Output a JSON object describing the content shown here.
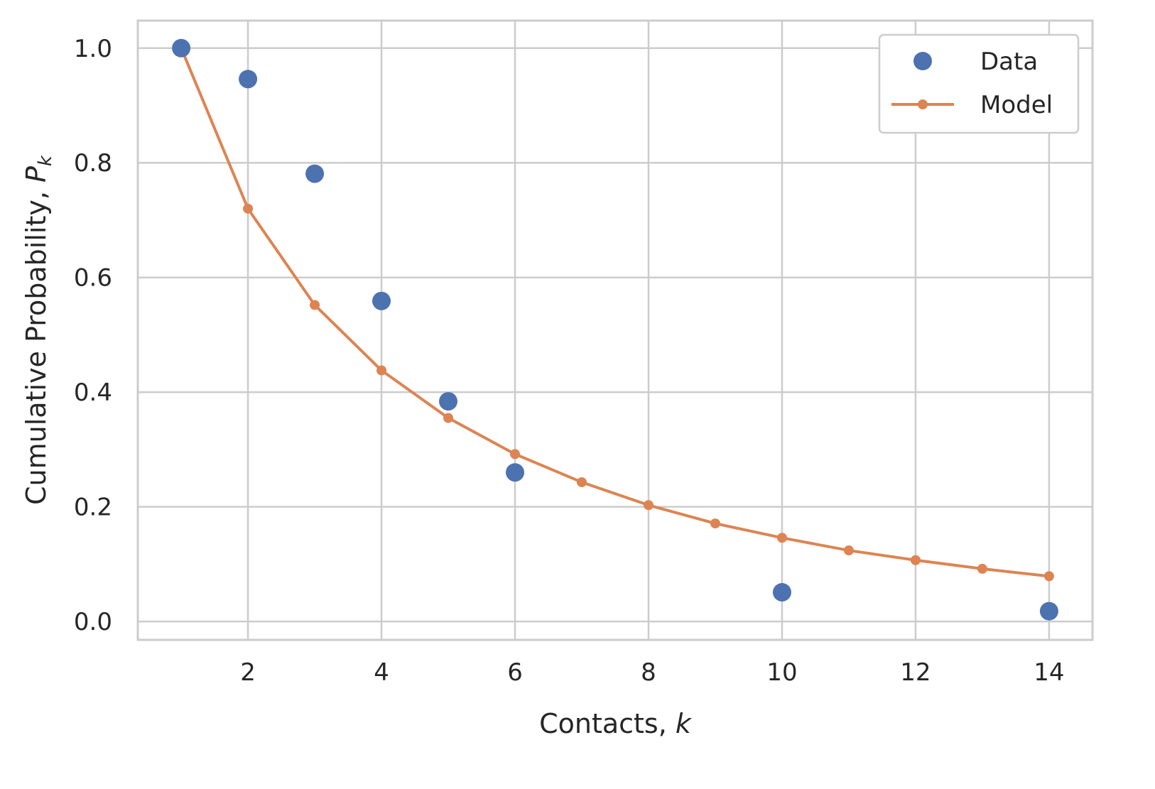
{
  "colors": {
    "data": "#4c72b0",
    "model": "#dd8452",
    "grid": "#cccccc",
    "text": "#262626"
  },
  "chart_data": {
    "type": "scatter",
    "xlabel": "Contacts, ",
    "xlabel_var": "k",
    "ylabel": "Cumulative Probability, ",
    "ylabel_var": "P",
    "ylabel_sub": "k",
    "xlim": [
      0.35,
      14.65
    ],
    "ylim": [
      -0.032,
      1.048
    ],
    "x_ticks": [
      2,
      4,
      6,
      8,
      10,
      12,
      14
    ],
    "x_tick_labels": [
      "2",
      "4",
      "6",
      "8",
      "10",
      "12",
      "14"
    ],
    "y_ticks": [
      0.0,
      0.2,
      0.4,
      0.6,
      0.8,
      1.0
    ],
    "y_tick_labels": [
      "0.0",
      "0.2",
      "0.4",
      "0.6",
      "0.8",
      "1.0"
    ],
    "grid": true,
    "legend_position": "top-right",
    "series": [
      {
        "name": "Data",
        "style": "markers",
        "color": "#4c72b0",
        "x": [
          1,
          2,
          3,
          4,
          5,
          6,
          10,
          14
        ],
        "y": [
          1.0,
          0.946,
          0.781,
          0.559,
          0.384,
          0.26,
          0.051,
          0.018
        ]
      },
      {
        "name": "Model",
        "style": "line-markers",
        "color": "#dd8452",
        "x": [
          1,
          2,
          3,
          4,
          5,
          6,
          7,
          8,
          9,
          10,
          11,
          12,
          13,
          14
        ],
        "y": [
          1.0,
          0.72,
          0.552,
          0.438,
          0.355,
          0.292,
          0.243,
          0.203,
          0.171,
          0.146,
          0.124,
          0.107,
          0.092,
          0.079
        ]
      }
    ]
  }
}
